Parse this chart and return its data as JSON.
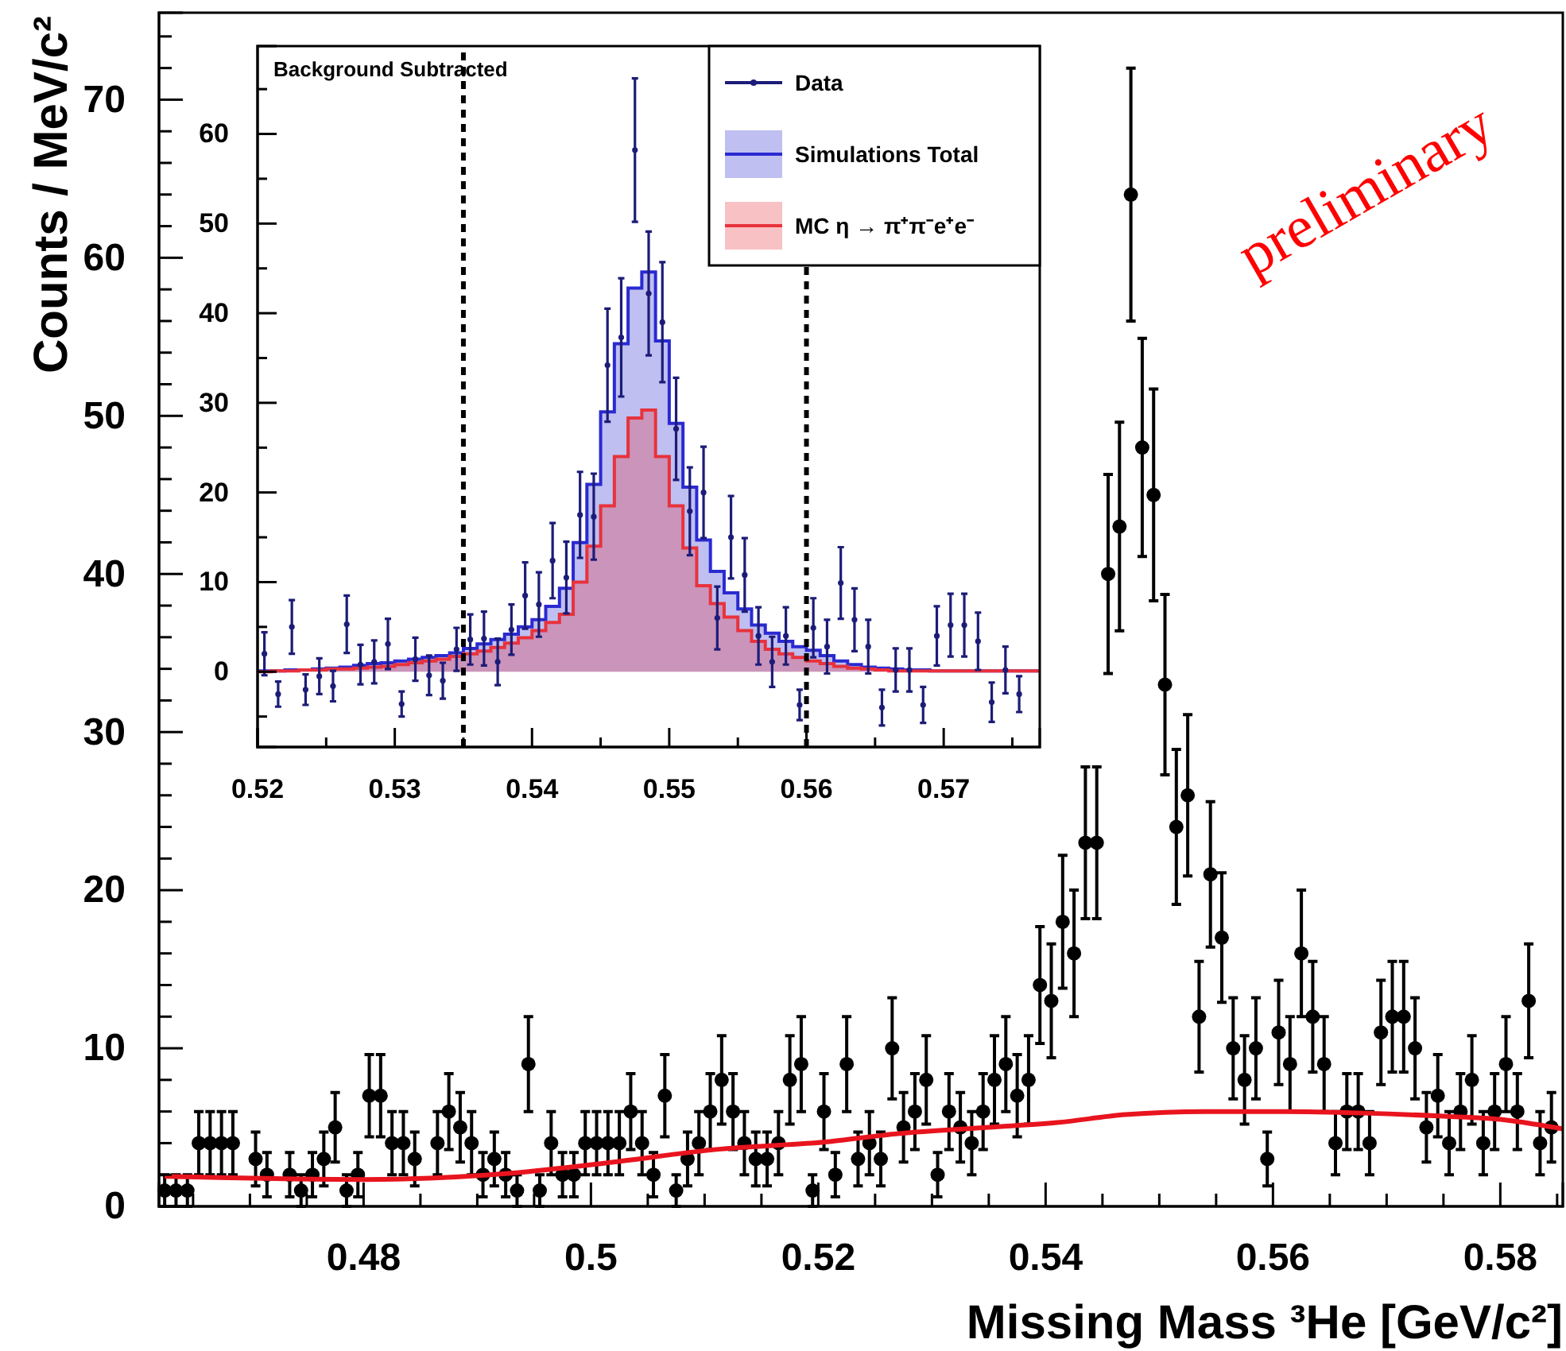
{
  "chart_data": [
    {
      "type": "scatter",
      "xlabel": "Missing Mass ³He [GeV/c²]",
      "ylabel": "Counts / MeV/c²",
      "marker": "circle",
      "xlim": [
        0.462,
        0.5855
      ],
      "ylim": [
        0,
        75.5
      ],
      "xticks": [
        0.48,
        0.5,
        0.52,
        0.54,
        0.56,
        0.58,
        {
          "value": 0.465,
          "label": null
        },
        {
          "value": 0.47,
          "label": null
        },
        {
          "value": 0.475,
          "label": null
        },
        {
          "value": 0.485,
          "label": null
        },
        {
          "value": 0.49,
          "label": null
        },
        {
          "value": 0.495,
          "label": null
        },
        {
          "value": 0.505,
          "label": null
        },
        {
          "value": 0.51,
          "label": null
        },
        {
          "value": 0.515,
          "label": null
        },
        {
          "value": 0.525,
          "label": null
        },
        {
          "value": 0.53,
          "label": null
        },
        {
          "value": 0.535,
          "label": null
        },
        {
          "value": 0.545,
          "label": null
        },
        {
          "value": 0.55,
          "label": null
        },
        {
          "value": 0.555,
          "label": null
        },
        {
          "value": 0.565,
          "label": null
        },
        {
          "value": 0.57,
          "label": null
        },
        {
          "value": 0.575,
          "label": null
        },
        {
          "value": 0.585,
          "label": null
        }
      ],
      "yticks": [
        0,
        10,
        20,
        30,
        40,
        50,
        60,
        70,
        {
          "value": 2,
          "label": null
        },
        {
          "value": 4,
          "label": null
        },
        {
          "value": 6,
          "label": null
        },
        {
          "value": 8,
          "label": null
        },
        {
          "value": 12,
          "label": null
        },
        {
          "value": 14,
          "label": null
        },
        {
          "value": 16,
          "label": null
        },
        {
          "value": 18,
          "label": null
        },
        {
          "value": 22,
          "label": null
        },
        {
          "value": 24,
          "label": null
        },
        {
          "value": 26,
          "label": null
        },
        {
          "value": 28,
          "label": null
        },
        {
          "value": 32,
          "label": null
        },
        {
          "value": 34,
          "label": null
        },
        {
          "value": 36,
          "label": null
        },
        {
          "value": 38,
          "label": null
        },
        {
          "value": 42,
          "label": null
        },
        {
          "value": 44,
          "label": null
        },
        {
          "value": 46,
          "label": null
        },
        {
          "value": 48,
          "label": null
        },
        {
          "value": 52,
          "label": null
        },
        {
          "value": 54,
          "label": null
        },
        {
          "value": 56,
          "label": null
        },
        {
          "value": 58,
          "label": null
        },
        {
          "value": 62,
          "label": null
        },
        {
          "value": 64,
          "label": null
        },
        {
          "value": 66,
          "label": null
        },
        {
          "value": 68,
          "label": null
        },
        {
          "value": 72,
          "label": null
        },
        {
          "value": 74,
          "label": null
        }
      ],
      "annotations": [
        "preliminary"
      ],
      "series": [
        {
          "color": "#000000",
          "x": [
            0.4625,
            0.4635,
            0.4645,
            0.4655,
            0.4665,
            0.4675,
            0.4685,
            0.4705,
            0.4715,
            0.4735,
            0.4745,
            0.4755,
            0.4765,
            0.4775,
            0.4785,
            0.4795,
            0.4805,
            0.4815,
            0.4825,
            0.4835,
            0.4845,
            0.4865,
            0.4875,
            0.4885,
            0.4895,
            0.4905,
            0.4915,
            0.4925,
            0.4935,
            0.4945,
            0.4955,
            0.4965,
            0.4975,
            0.4985,
            0.4995,
            0.5005,
            0.5015,
            0.5025,
            0.5035,
            0.5045,
            0.5055,
            0.5065,
            0.5075,
            0.5085,
            0.5095,
            0.5105,
            0.5115,
            0.5125,
            0.5135,
            0.5145,
            0.5155,
            0.5165,
            0.5175,
            0.5185,
            0.5195,
            0.5205,
            0.5215,
            0.5225,
            0.5235,
            0.5245,
            0.5255,
            0.5265,
            0.5275,
            0.5285,
            0.5295,
            0.5305,
            0.5315,
            0.5325,
            0.5335,
            0.5345,
            0.5355,
            0.5365,
            0.5375,
            0.5385,
            0.5395,
            0.5405,
            0.5415,
            0.5425,
            0.5435,
            0.5445,
            0.5455,
            0.5465,
            0.5475,
            0.5485,
            0.5495,
            0.5505,
            0.5515,
            0.5525,
            0.5535,
            0.5545,
            0.5555,
            0.5565,
            0.5575,
            0.5585,
            0.5595,
            0.5605,
            0.5615,
            0.5625,
            0.5635,
            0.5645,
            0.5655,
            0.5665,
            0.5675,
            0.5685,
            0.5695,
            0.5705,
            0.5715,
            0.5725,
            0.5735,
            0.5745,
            0.5755,
            0.5765,
            0.5775,
            0.5785,
            0.5795,
            0.5805,
            0.5815,
            0.5825,
            0.5835,
            0.5845
          ],
          "values": [
            1,
            1,
            1,
            4,
            4,
            4,
            4,
            3,
            2,
            2,
            1,
            2,
            3,
            5,
            1,
            2,
            7,
            7,
            4,
            4,
            3,
            4,
            6,
            5,
            4,
            2,
            3,
            2,
            1,
            9,
            1,
            4,
            2,
            2,
            4,
            4,
            4,
            4,
            6,
            4,
            2,
            7,
            1,
            3,
            4,
            6,
            8,
            6,
            4,
            3,
            3,
            4,
            8,
            9,
            1,
            6,
            2,
            9,
            3,
            4,
            3,
            10,
            5,
            6,
            8,
            2,
            6,
            5,
            4,
            6,
            8,
            9,
            7,
            8,
            14,
            13,
            18,
            16,
            23,
            23,
            40,
            43,
            64,
            48,
            45,
            33,
            24,
            26,
            12,
            21,
            17,
            10,
            8,
            10,
            3,
            11,
            9,
            16,
            12,
            9,
            4,
            6,
            6,
            4,
            11,
            12,
            12,
            10,
            5,
            7,
            4,
            6,
            8,
            4,
            6,
            9,
            6,
            13,
            4,
            5
          ],
          "errors": [
            1,
            1,
            1,
            2,
            2,
            2,
            2,
            1.7,
            1.4,
            1.4,
            1,
            1.4,
            1.7,
            2.2,
            1,
            1.4,
            2.6,
            2.6,
            2,
            2,
            1.7,
            2,
            2.4,
            2.2,
            2,
            1.4,
            1.7,
            1.4,
            1,
            3,
            1,
            2,
            1.4,
            1.4,
            2,
            2,
            2,
            2,
            2.4,
            2,
            1.4,
            2.6,
            1,
            1.7,
            2,
            2.4,
            2.8,
            2.4,
            2,
            1.7,
            1.7,
            2,
            2.8,
            3,
            1,
            2.4,
            1.4,
            3,
            1.7,
            2,
            1.7,
            3.2,
            2.2,
            2.4,
            2.8,
            1.4,
            2.4,
            2.2,
            2,
            2.4,
            2.8,
            3,
            2.6,
            2.8,
            3.7,
            3.6,
            4.2,
            4,
            4.8,
            4.8,
            6.3,
            6.6,
            8,
            6.9,
            6.7,
            5.7,
            4.9,
            5.1,
            3.5,
            4.6,
            4.1,
            3.2,
            2.8,
            3.2,
            1.7,
            3.3,
            3,
            4,
            3.5,
            3,
            2,
            2.4,
            2.4,
            2,
            3.3,
            3.5,
            3.5,
            3.2,
            2.2,
            2.6,
            2,
            2.4,
            2.8,
            2,
            2.4,
            3,
            2.4,
            3.6,
            2,
            2.2
          ]
        },
        {
          "type": "line",
          "marker": "none",
          "color": "#e8141e",
          "x": [
            0.4625,
            0.48,
            0.493,
            0.502,
            0.511,
            0.521,
            0.527,
            0.535,
            0.541,
            0.547,
            0.554,
            0.561,
            0.568,
            0.575,
            0.58,
            0.583,
            0.5855
          ],
          "values": [
            1.9,
            1.7,
            2.1,
            2.8,
            3.6,
            4.1,
            4.6,
            5.0,
            5.3,
            5.8,
            6.0,
            6.0,
            5.9,
            5.7,
            5.5,
            5.2,
            4.9
          ]
        }
      ]
    },
    {
      "type": "scatter",
      "marker": "circle",
      "legend": "top right",
      "xlim": [
        0.52,
        0.577
      ],
      "ylim": [
        -8.4,
        69.8
      ],
      "xticks": [
        0.52,
        0.53,
        0.54,
        0.55,
        0.56,
        0.57,
        {
          "value": 0.525,
          "label": null
        },
        {
          "value": 0.535,
          "label": null
        },
        {
          "value": 0.545,
          "label": null
        },
        {
          "value": 0.555,
          "label": null
        },
        {
          "value": 0.565,
          "label": null
        },
        {
          "value": 0.575,
          "label": null
        }
      ],
      "yticks": [
        0,
        10,
        20,
        30,
        40,
        50,
        60,
        {
          "value": -5,
          "label": null
        },
        {
          "value": 5,
          "label": null
        },
        {
          "value": 15,
          "label": null
        },
        {
          "value": 25,
          "label": null
        },
        {
          "value": 35,
          "label": null
        },
        {
          "value": 45,
          "label": null
        },
        {
          "value": 55,
          "label": null
        },
        {
          "value": 65,
          "label": null
        }
      ],
      "annotations": [
        "Background Subtracted"
      ],
      "ref_lines": [
        {
          "axis": "x",
          "value": 0.535,
          "color": "#000000",
          "line_style": "dashed"
        },
        {
          "axis": "x",
          "value": 0.56,
          "color": "#000000",
          "line_style": "dashed"
        }
      ],
      "bins": [
        0.52,
        0.521,
        0.522,
        0.523,
        0.524,
        0.525,
        0.526,
        0.527,
        0.528,
        0.529,
        0.53,
        0.531,
        0.532,
        0.533,
        0.534,
        0.535,
        0.536,
        0.537,
        0.538,
        0.539,
        0.54,
        0.541,
        0.542,
        0.543,
        0.544,
        0.545,
        0.546,
        0.547,
        0.548,
        0.549,
        0.55,
        0.551,
        0.552,
        0.553,
        0.554,
        0.555,
        0.556,
        0.557,
        0.558,
        0.559,
        0.56,
        0.561,
        0.562,
        0.563,
        0.564,
        0.565,
        0.566,
        0.567,
        0.568,
        0.569,
        0.57,
        0.571,
        0.572,
        0.573,
        0.574,
        0.575,
        0.576,
        0.577
      ],
      "series": [
        {
          "name": "Data",
          "color": "#1c1c78",
          "x": [
            0.5205,
            0.5215,
            0.5225,
            0.5235,
            0.5245,
            0.5255,
            0.5265,
            0.5275,
            0.5285,
            0.5295,
            0.5305,
            0.5315,
            0.5325,
            0.5335,
            0.5345,
            0.5355,
            0.5365,
            0.5375,
            0.5385,
            0.5395,
            0.5405,
            0.5415,
            0.5425,
            0.5435,
            0.5445,
            0.5455,
            0.5465,
            0.5475,
            0.5485,
            0.5495,
            0.5505,
            0.5515,
            0.5525,
            0.5535,
            0.5545,
            0.5555,
            0.5565,
            0.5575,
            0.5585,
            0.5595,
            0.5605,
            0.5615,
            0.5625,
            0.5635,
            0.5645,
            0.5655,
            0.5665,
            0.5675,
            0.5685,
            0.5695,
            0.5705,
            0.5715,
            0.5725,
            0.5735,
            0.5745,
            0.5755
          ],
          "values": [
            2,
            -2.5,
            5,
            -2,
            -0.5,
            -1.6,
            5.3,
            0.8,
            1.1,
            3.1,
            -3.6,
            1.4,
            -0.4,
            -1,
            2.5,
            3.6,
            3.7,
            1.1,
            4.7,
            8.5,
            7.5,
            12.4,
            10.5,
            17.5,
            17.3,
            34.2,
            37.3,
            58.2,
            42.2,
            39,
            27.1,
            17.9,
            20,
            6,
            15,
            10.8,
            4,
            1.1,
            4,
            -3.7,
            4.9,
            2.8,
            9.9,
            5.8,
            2.8,
            -4,
            0.2,
            0.2,
            -3.7,
            4,
            5.2,
            5.2,
            3.4,
            -3.4,
            0.2,
            -2.5
          ],
          "errors": [
            2.4,
            1.4,
            3,
            1.7,
            2,
            1.7,
            3.2,
            2.2,
            2.4,
            2.8,
            1.4,
            2.4,
            2.2,
            2,
            2.4,
            2.8,
            3,
            2.6,
            2.8,
            3.7,
            3.6,
            4.2,
            4,
            4.8,
            4.8,
            6.3,
            6.6,
            8,
            6.9,
            6.7,
            5.7,
            4.9,
            5.1,
            3.5,
            4.6,
            4.1,
            3.2,
            2.8,
            3.2,
            1.7,
            3.3,
            3,
            4,
            3.5,
            3,
            2,
            2.4,
            2.4,
            2,
            3.3,
            3.5,
            3.5,
            3.2,
            2.2,
            2.6,
            2
          ]
        },
        {
          "name": "Simulations Total",
          "type": "histogram",
          "color": "#2a2ad2",
          "values": [
            0.1,
            0.1,
            0.2,
            0.2,
            0.3,
            0.4,
            0.5,
            0.7,
            0.9,
            1.0,
            1.2,
            1.4,
            1.6,
            1.8,
            2.1,
            2.6,
            3.1,
            3.6,
            4.2,
            5.0,
            5.8,
            7.3,
            9.3,
            14.4,
            20.9,
            29,
            36.6,
            42.8,
            44.6,
            36.9,
            27.7,
            20.6,
            14.7,
            11.2,
            8.8,
            7.0,
            5.2,
            4.3,
            3.4,
            2.8,
            2.4,
            1.8,
            1.2,
            0.8,
            0.5,
            0.4,
            0.3,
            0.2,
            0.2,
            0.1,
            0.1,
            0.1,
            0.1,
            0.1,
            0.1,
            0.1,
            0.1
          ]
        },
        {
          "name": "MC η → π⁺π⁻e⁺e⁻",
          "type": "histogram",
          "color": "#e8323c",
          "values": [
            0,
            0.1,
            0.1,
            0.2,
            0.2,
            0.3,
            0.3,
            0.4,
            0.5,
            0.6,
            0.8,
            1.0,
            1.2,
            1.4,
            1.7,
            2.0,
            2.3,
            2.7,
            3.2,
            3.8,
            4.6,
            5.5,
            6.4,
            10,
            14,
            18.5,
            24,
            28.3,
            29.2,
            24,
            18.5,
            13.8,
            9.6,
            7.6,
            6.1,
            4.6,
            3.4,
            2.5,
            2.0,
            1.6,
            1.2,
            0.9,
            0.6,
            0.4,
            0.3,
            0.2,
            0.1,
            0.1,
            0.1,
            0.1,
            0.1,
            0.1,
            0.1,
            0.1,
            0.1,
            0.1,
            0.1
          ]
        }
      ]
    }
  ]
}
